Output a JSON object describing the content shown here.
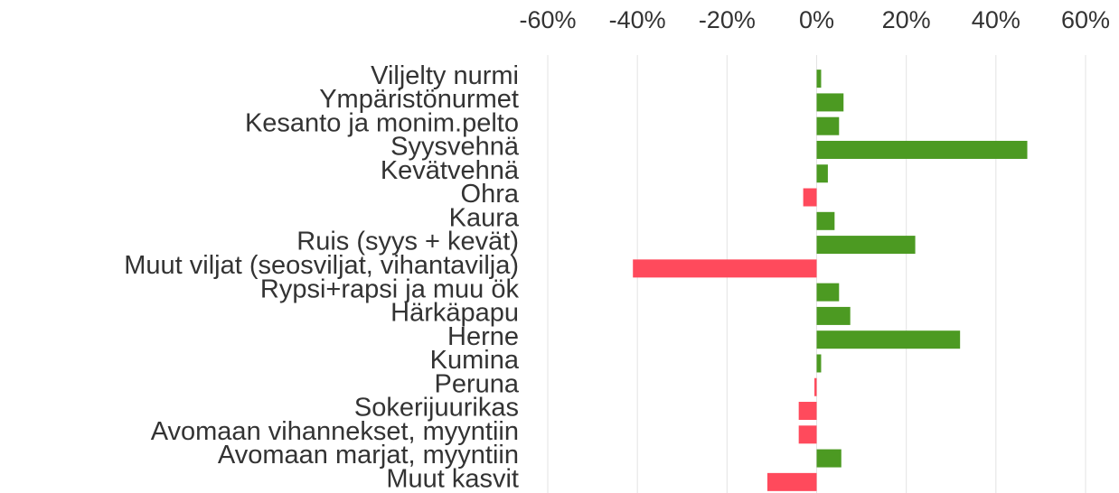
{
  "chart_data": {
    "type": "barh",
    "categories": [
      "Viljelty nurmi",
      "Ympäristönurmet",
      "Kesanto ja monim.pelto",
      "Syysvehnä",
      "Kevätvehnä",
      "Ohra",
      "Kaura",
      "Ruis (syys + kevät)",
      "Muut viljat (seosviljat, vihantavilja)",
      "Rypsi+rapsi ja muu ök",
      "Härkäpapu",
      "Herne",
      "Kumina",
      "Peruna",
      "Sokerijuurikas",
      "Avomaan vihannekset, myyntiin",
      "Avomaan marjat, myyntiin",
      "Muut kasvit"
    ],
    "values": [
      1,
      6,
      5,
      47,
      2.5,
      -3,
      4,
      22,
      -41,
      5,
      7.5,
      32,
      1,
      -0.5,
      -4,
      -4,
      5.5,
      -11
    ],
    "positive_color": "#4c9a22",
    "negative_color": "#ff4a5c",
    "xlim": [
      -60,
      60
    ],
    "xticks": [
      {
        "value": -60,
        "label": "-60%"
      },
      {
        "value": -40,
        "label": "-40%"
      },
      {
        "value": -20,
        "label": "-20%"
      },
      {
        "value": 0,
        "label": "0%"
      },
      {
        "value": 20,
        "label": "20%"
      },
      {
        "value": 40,
        "label": "40%"
      },
      {
        "value": 60,
        "label": "60%"
      }
    ],
    "grid": true
  }
}
